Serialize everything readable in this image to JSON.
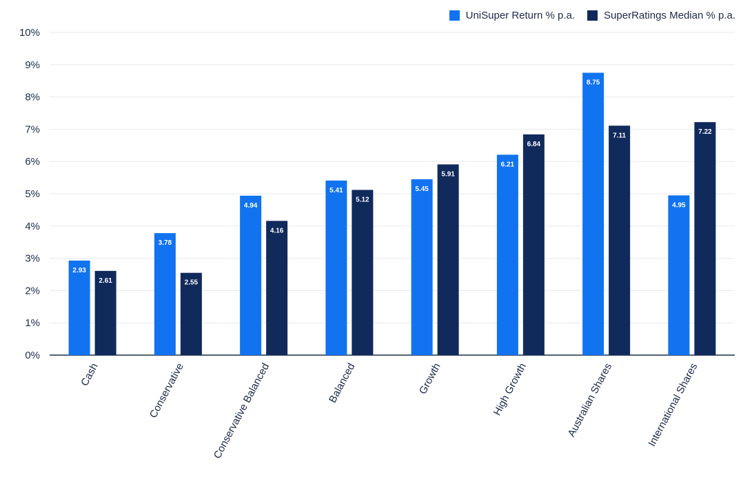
{
  "chart_data": {
    "type": "bar",
    "categories": [
      "Cash",
      "Conservative",
      "Conservative Balanced",
      "Balanced",
      "Growth",
      "High Growth",
      "Australian Shares",
      "International Shares"
    ],
    "series": [
      {
        "name": "UniSuper Return % p.a.",
        "color": "#1173f0",
        "values": [
          2.93,
          3.78,
          4.94,
          5.41,
          5.45,
          6.21,
          8.75,
          4.95
        ]
      },
      {
        "name": "SuperRatings Median % p.a.",
        "color": "#112a5c",
        "values": [
          2.61,
          2.55,
          4.16,
          5.12,
          5.91,
          6.84,
          7.11,
          7.22
        ]
      }
    ],
    "value_labels": [
      [
        "2.93",
        "3.78",
        "4.94",
        "5.41",
        "5.45",
        "6.21",
        "8.75",
        "4.95"
      ],
      [
        "2.61",
        "2.55",
        "4.16",
        "5.12",
        "5.91",
        "6.84",
        "7.11",
        "7.22"
      ]
    ],
    "y_ticks": [
      "0%",
      "1%",
      "2%",
      "3%",
      "4%",
      "5%",
      "6%",
      "7%",
      "8%",
      "9%",
      "10%"
    ],
    "ylim": [
      0,
      10
    ],
    "grid": true,
    "legend_position": "top-right"
  }
}
